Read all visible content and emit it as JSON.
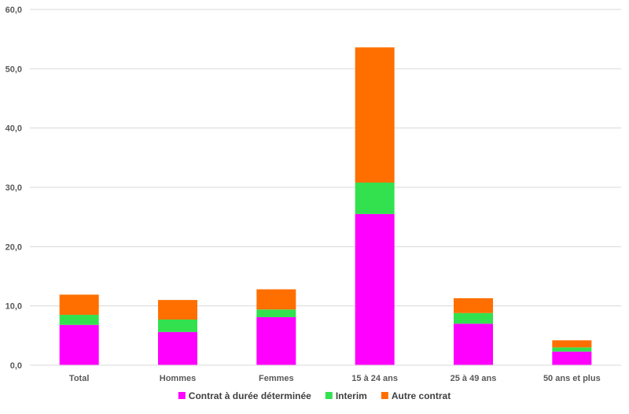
{
  "chart_data": {
    "type": "bar",
    "stacked": true,
    "title": "",
    "xlabel": "",
    "ylabel": "",
    "ylim": [
      0,
      60
    ],
    "yticks": [
      "0,0",
      "10,0",
      "20,0",
      "30,0",
      "40,0",
      "50,0",
      "60,0"
    ],
    "grid": true,
    "legend_position": "bottom",
    "categories": [
      "Total",
      "Hommes",
      "Femmes",
      "15 à 24 ans",
      "25 à 49 ans",
      "50 ans et plus"
    ],
    "series": [
      {
        "name": "Contrat à durée déterminée",
        "color": "#ff00ff",
        "values": [
          6.8,
          5.6,
          8.1,
          25.5,
          7.0,
          2.3
        ]
      },
      {
        "name": "Interim",
        "color": "#33e14f",
        "values": [
          1.7,
          2.1,
          1.3,
          5.3,
          1.8,
          0.7
        ]
      },
      {
        "name": "Autre contrat",
        "color": "#ff6f00",
        "values": [
          3.4,
          3.3,
          3.4,
          22.8,
          2.5,
          1.2
        ]
      }
    ]
  }
}
